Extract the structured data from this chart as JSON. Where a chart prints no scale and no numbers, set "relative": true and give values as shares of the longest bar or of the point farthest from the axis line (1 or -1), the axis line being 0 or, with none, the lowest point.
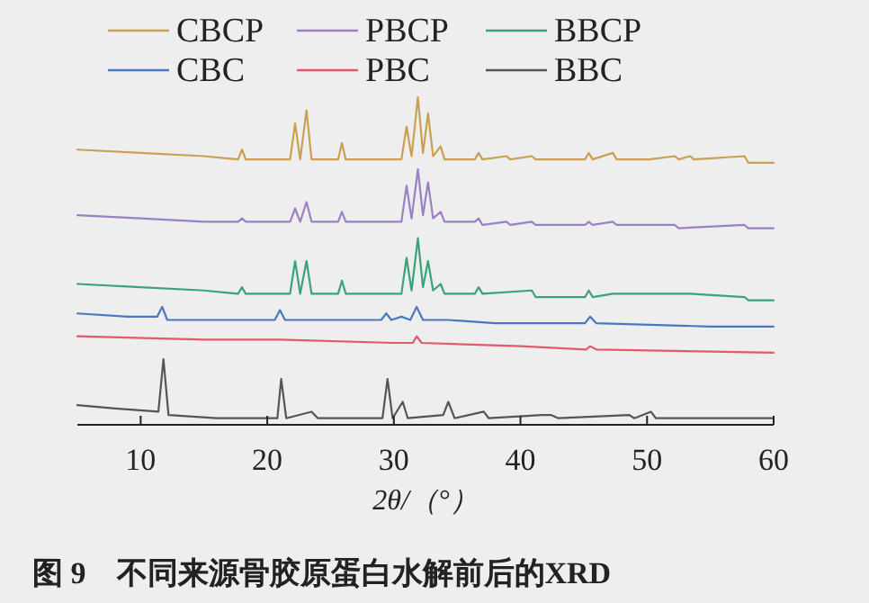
{
  "chart_data": {
    "type": "line",
    "relative": true,
    "title": "图 9　不同来源骨胶原蛋白水解前后的XRD",
    "xlabel": "2θ/（°）",
    "xlim": [
      5,
      60
    ],
    "xticks": [
      10,
      20,
      30,
      40,
      50,
      60
    ],
    "legend": "top",
    "marker": "none",
    "line_style": "solid",
    "series": [
      {
        "name": "CBCP",
        "color": "#c9a052",
        "x": [
          5,
          10,
          15,
          17.7,
          18,
          18.3,
          21.8,
          22.2,
          22.6,
          23.1,
          23.5,
          25.6,
          25.9,
          26.2,
          30.6,
          31,
          31.4,
          31.9,
          32.3,
          32.7,
          33.1,
          33.7,
          34,
          36.4,
          36.7,
          37,
          38.9,
          39.2,
          40.9,
          41.2,
          45.1,
          45.4,
          45.7,
          47.3,
          47.6,
          50.2,
          52.2,
          52.5,
          53.4,
          53.7,
          57.7,
          58,
          60
        ],
        "values": [
          0.84,
          0.83,
          0.82,
          0.81,
          0.84,
          0.81,
          0.81,
          0.92,
          0.81,
          0.96,
          0.81,
          0.81,
          0.86,
          0.81,
          0.81,
          0.91,
          0.82,
          1.0,
          0.83,
          0.95,
          0.82,
          0.85,
          0.81,
          0.81,
          0.83,
          0.81,
          0.82,
          0.81,
          0.82,
          0.81,
          0.81,
          0.83,
          0.81,
          0.83,
          0.81,
          0.81,
          0.82,
          0.81,
          0.82,
          0.81,
          0.82,
          0.8,
          0.8
        ]
      },
      {
        "name": "PBCP",
        "color": "#9b80c4",
        "x": [
          5,
          10,
          15,
          17.7,
          18,
          18.3,
          21.8,
          22.2,
          22.6,
          23.1,
          23.5,
          25.6,
          25.9,
          26.2,
          30.6,
          31,
          31.4,
          31.9,
          32.3,
          32.7,
          33.1,
          33.7,
          34,
          36.4,
          36.7,
          37,
          38.9,
          39.2,
          40.9,
          41.2,
          45.1,
          45.4,
          45.7,
          47.3,
          47.6,
          52.2,
          52.5,
          57.7,
          58,
          60
        ],
        "values": [
          0.64,
          0.63,
          0.62,
          0.62,
          0.63,
          0.62,
          0.62,
          0.66,
          0.62,
          0.68,
          0.62,
          0.62,
          0.65,
          0.62,
          0.62,
          0.73,
          0.63,
          0.78,
          0.64,
          0.74,
          0.63,
          0.65,
          0.62,
          0.62,
          0.63,
          0.61,
          0.62,
          0.61,
          0.62,
          0.61,
          0.61,
          0.62,
          0.61,
          0.62,
          0.61,
          0.61,
          0.6,
          0.61,
          0.6,
          0.6
        ]
      },
      {
        "name": "BBCP",
        "color": "#3aa37a",
        "x": [
          5,
          10,
          15,
          17.7,
          18,
          18.3,
          21.8,
          22.2,
          22.6,
          23.1,
          23.5,
          25.6,
          25.9,
          26.2,
          30.6,
          31,
          31.4,
          31.9,
          32.3,
          32.7,
          33.1,
          33.7,
          34,
          36.4,
          36.7,
          37,
          40.9,
          41.2,
          45.1,
          45.4,
          45.7,
          47.3,
          52.2,
          53.4,
          57.7,
          58,
          60
        ],
        "values": [
          0.43,
          0.42,
          0.41,
          0.4,
          0.42,
          0.4,
          0.4,
          0.5,
          0.4,
          0.5,
          0.4,
          0.4,
          0.44,
          0.4,
          0.4,
          0.51,
          0.41,
          0.57,
          0.42,
          0.5,
          0.41,
          0.43,
          0.4,
          0.4,
          0.42,
          0.4,
          0.41,
          0.39,
          0.39,
          0.41,
          0.39,
          0.4,
          0.4,
          0.4,
          0.39,
          0.38,
          0.38
        ]
      },
      {
        "name": "CBC",
        "color": "#4a78c0",
        "x": [
          5,
          9,
          11.3,
          11.7,
          12.1,
          20.6,
          21,
          21.4,
          29,
          29.4,
          29.8,
          30.6,
          31.3,
          31.8,
          32.3,
          34.3,
          38,
          45.1,
          45.5,
          46,
          55,
          60
        ],
        "values": [
          0.34,
          0.33,
          0.33,
          0.36,
          0.32,
          0.32,
          0.35,
          0.32,
          0.32,
          0.34,
          0.32,
          0.33,
          0.32,
          0.36,
          0.32,
          0.32,
          0.31,
          0.31,
          0.33,
          0.31,
          0.3,
          0.3
        ]
      },
      {
        "name": "PBC",
        "color": "#e05a6a",
        "x": [
          5,
          15,
          21,
          30,
          31.5,
          31.8,
          32.2,
          40,
          45.2,
          45.5,
          46,
          60
        ],
        "values": [
          0.27,
          0.26,
          0.26,
          0.25,
          0.25,
          0.27,
          0.25,
          0.24,
          0.23,
          0.24,
          0.23,
          0.22
        ]
      },
      {
        "name": "BBC",
        "color": "#555555",
        "x": [
          5,
          8,
          11.4,
          11.8,
          12.2,
          16,
          20.8,
          21.1,
          21.5,
          23.5,
          24,
          29.1,
          29.5,
          29.9,
          30.7,
          31.1,
          33.9,
          34.3,
          34.8,
          37.1,
          37.5,
          41.7,
          42.4,
          43,
          48.6,
          49,
          50.3,
          50.7,
          60
        ],
        "values": [
          0.06,
          0.05,
          0.04,
          0.2,
          0.03,
          0.02,
          0.02,
          0.14,
          0.02,
          0.04,
          0.02,
          0.02,
          0.14,
          0.02,
          0.07,
          0.02,
          0.03,
          0.07,
          0.02,
          0.04,
          0.02,
          0.03,
          0.03,
          0.02,
          0.03,
          0.02,
          0.04,
          0.02,
          0.02
        ]
      }
    ]
  }
}
